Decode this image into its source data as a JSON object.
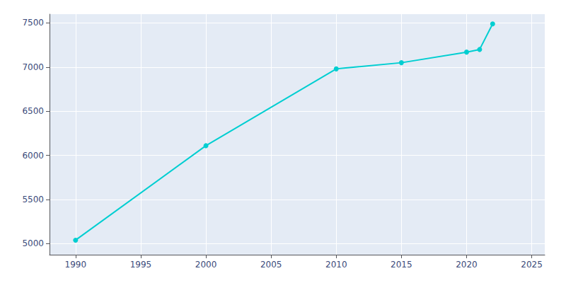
{
  "chart_data": {
    "type": "line",
    "x": [
      1990,
      2000,
      2010,
      2015,
      2020,
      2021,
      2022
    ],
    "values": [
      5040,
      6110,
      6980,
      7050,
      7170,
      7200,
      7490
    ],
    "color": "#00CED1",
    "marker": "circle",
    "xlim": [
      1988,
      2026
    ],
    "ylim": [
      4875,
      7600
    ],
    "xticks": [
      1990,
      1995,
      2000,
      2005,
      2010,
      2015,
      2020,
      2025
    ],
    "yticks": [
      5000,
      5500,
      6000,
      6500,
      7000,
      7500
    ],
    "grid": true
  }
}
